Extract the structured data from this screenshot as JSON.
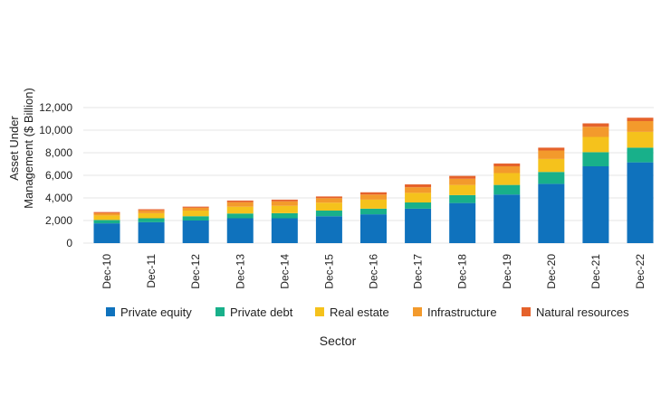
{
  "chart_data": {
    "type": "bar",
    "stacked": true,
    "categories": [
      "Dec-10",
      "Dec-11",
      "Dec-12",
      "Dec-13",
      "Dec-14",
      "Dec-15",
      "Dec-16",
      "Dec-17",
      "Dec-18",
      "Dec-19",
      "Dec-20",
      "Dec-21",
      "Dec-22"
    ],
    "series": [
      {
        "name": "Private equity",
        "color": "#0f72bd",
        "values": [
          1750,
          1850,
          2000,
          2200,
          2200,
          2380,
          2550,
          3050,
          3550,
          4300,
          5250,
          6800,
          7150
        ]
      },
      {
        "name": "Private debt",
        "color": "#18b08a",
        "values": [
          300,
          350,
          380,
          420,
          450,
          500,
          500,
          550,
          700,
          850,
          1050,
          1250,
          1300
        ]
      },
      {
        "name": "Real estate",
        "color": "#f5c21c",
        "values": [
          400,
          450,
          500,
          600,
          650,
          700,
          800,
          850,
          900,
          1050,
          1150,
          1350,
          1400
        ]
      },
      {
        "name": "Infrastructure",
        "color": "#f39a2c",
        "values": [
          200,
          250,
          250,
          400,
          400,
          400,
          450,
          500,
          550,
          600,
          750,
          900,
          950
        ]
      },
      {
        "name": "Natural resources",
        "color": "#e5622b",
        "values": [
          100,
          100,
          100,
          150,
          150,
          150,
          200,
          250,
          250,
          250,
          250,
          300,
          300
        ]
      }
    ],
    "xlabel": "Sector",
    "ylabel": "Asset Under Management ($ Billion)",
    "ylabel_lines": [
      "Asset Under",
      "Management ($ Billion)"
    ],
    "ylim": [
      0,
      12000
    ],
    "yticks": [
      0,
      2000,
      4000,
      6000,
      8000,
      10000,
      12000
    ],
    "ytick_labels": [
      "0",
      "2,000",
      "4,000",
      "6,000",
      "8,000",
      "10,000",
      "12,000"
    ],
    "grid": true,
    "gridColor": "#e6e6e6",
    "legend_position": "bottom"
  }
}
